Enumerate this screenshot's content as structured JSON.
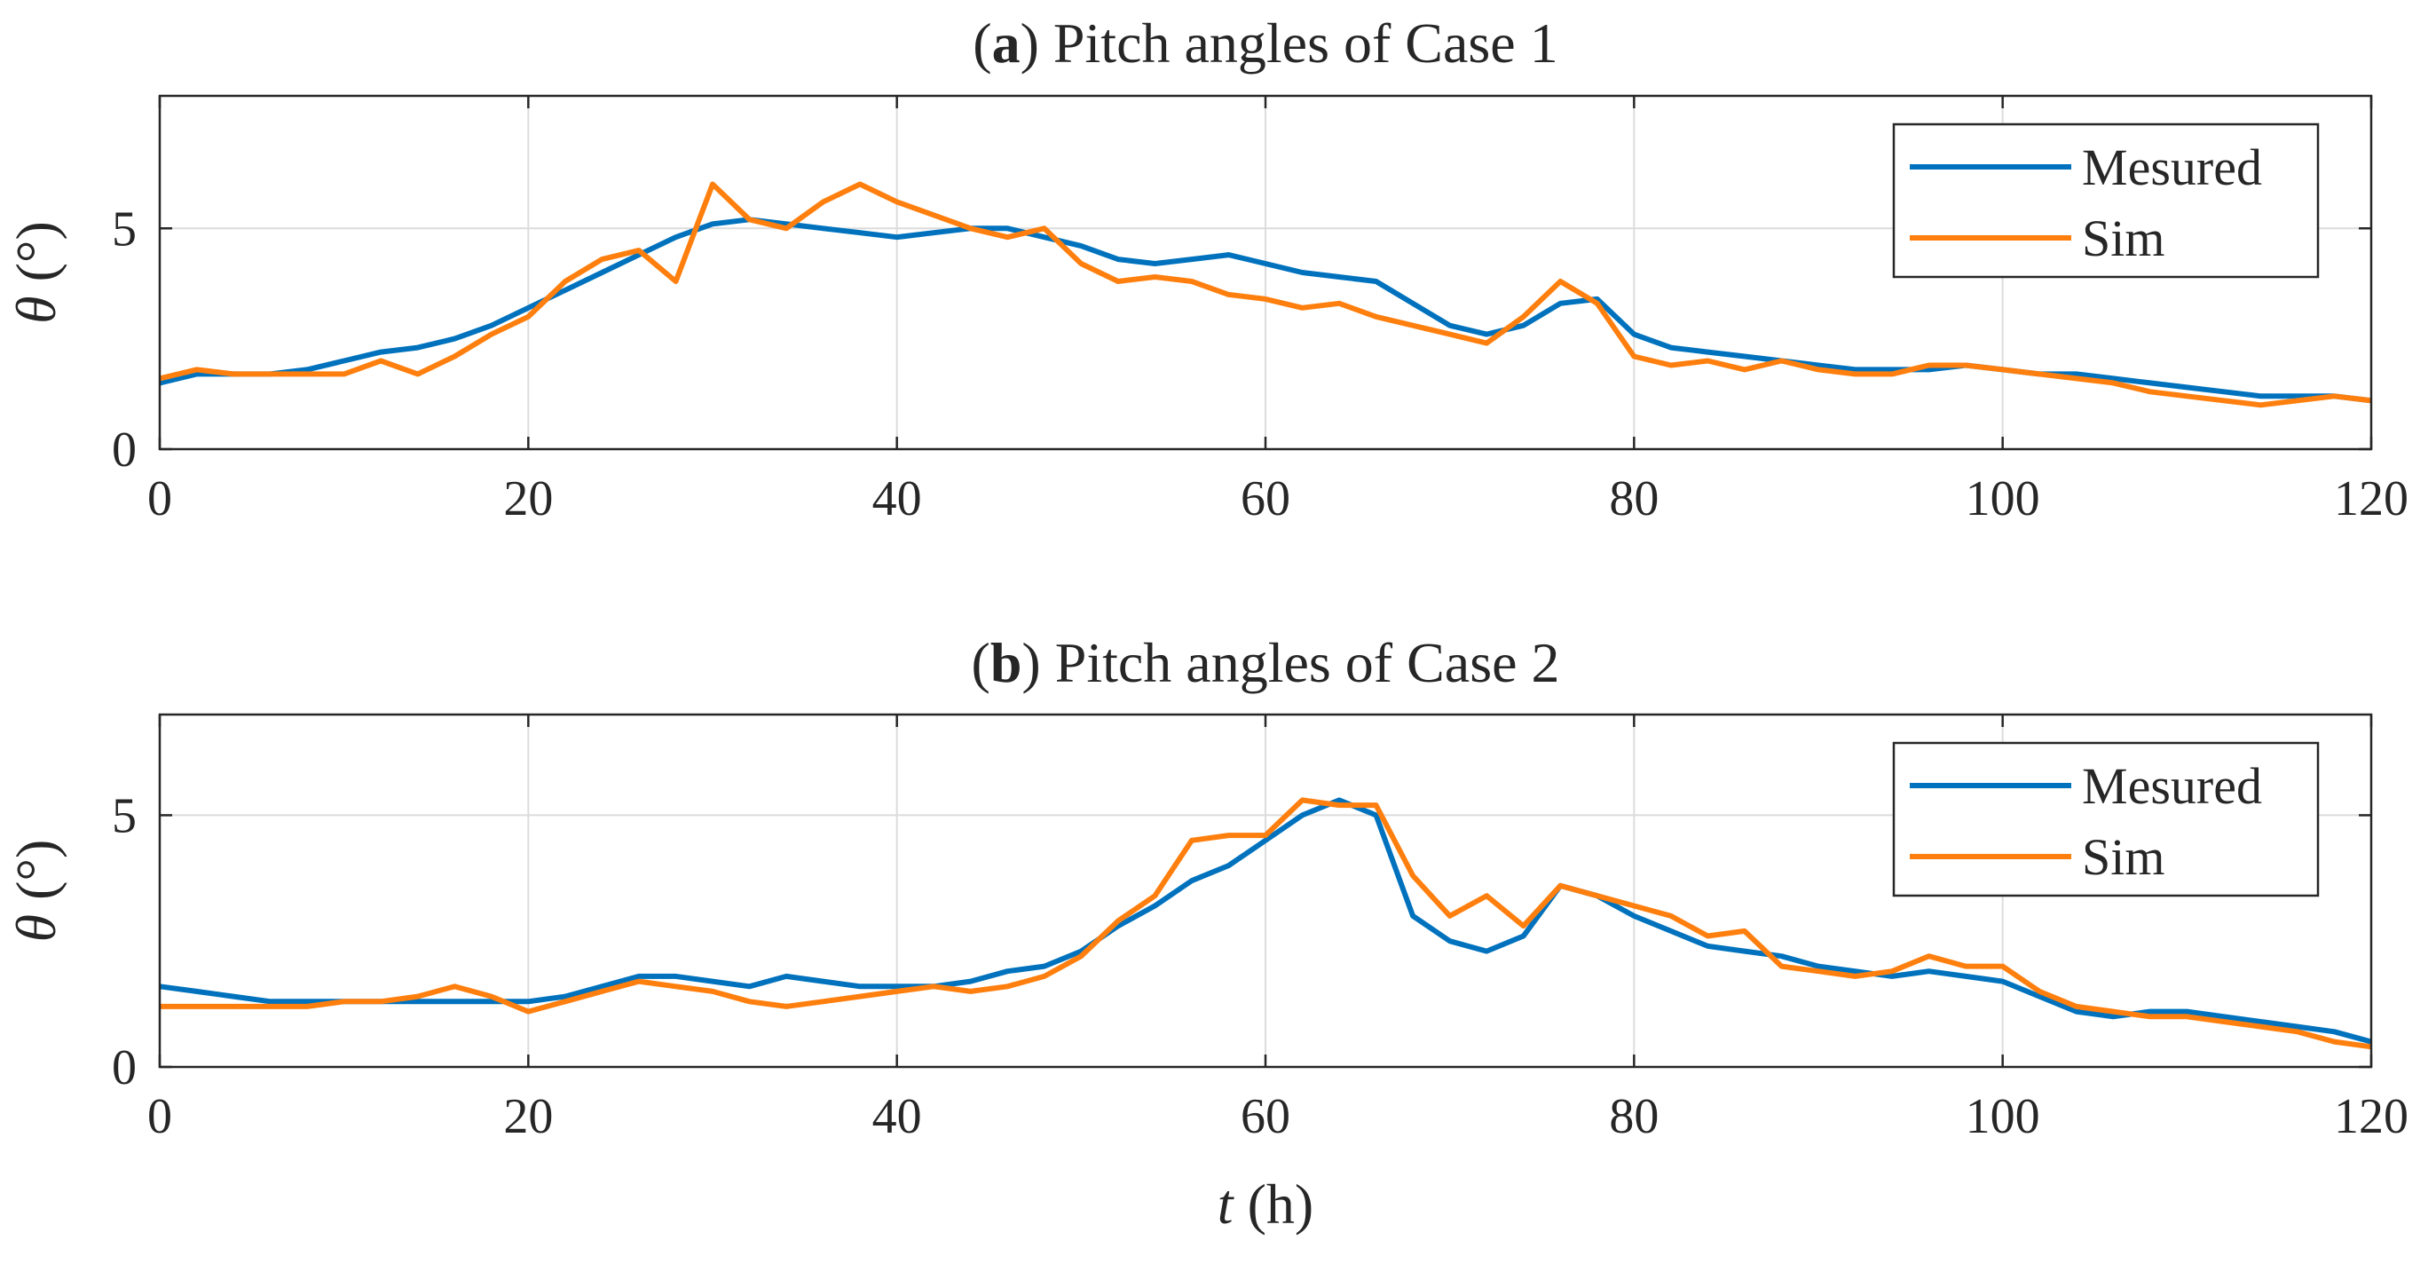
{
  "chart_data": [
    {
      "type": "line",
      "title_letter": "a",
      "title_rest": "Pitch angles of Case 1",
      "xlabel": "",
      "ylabel_symbol": "θ",
      "ylabel_unit": "(°)",
      "xlim": [
        0,
        120
      ],
      "ylim": [
        0,
        8
      ],
      "xticks": [
        0,
        20,
        40,
        60,
        80,
        100,
        120
      ],
      "yticks": [
        0,
        5
      ],
      "grid": true,
      "legend_position": "top-right",
      "series": [
        {
          "name": "Mesured",
          "color": "#0072BD",
          "x": [
            0,
            2,
            4,
            6,
            8,
            10,
            12,
            14,
            16,
            18,
            20,
            22,
            24,
            26,
            28,
            30,
            32,
            34,
            36,
            38,
            40,
            42,
            44,
            46,
            48,
            50,
            52,
            54,
            56,
            58,
            60,
            62,
            64,
            66,
            68,
            70,
            72,
            74,
            76,
            78,
            80,
            82,
            84,
            86,
            88,
            90,
            92,
            94,
            96,
            98,
            100,
            102,
            104,
            106,
            108,
            110,
            112,
            114,
            116,
            118,
            120
          ],
          "y": [
            1.5,
            1.7,
            1.7,
            1.7,
            1.8,
            2.0,
            2.2,
            2.3,
            2.5,
            2.8,
            3.2,
            3.6,
            4.0,
            4.4,
            4.8,
            5.1,
            5.2,
            5.1,
            5.0,
            4.9,
            4.8,
            4.9,
            5.0,
            5.0,
            4.8,
            4.6,
            4.3,
            4.2,
            4.3,
            4.4,
            4.2,
            4.0,
            3.9,
            3.8,
            3.3,
            2.8,
            2.6,
            2.8,
            3.3,
            3.4,
            2.6,
            2.3,
            2.2,
            2.1,
            2.0,
            1.9,
            1.8,
            1.8,
            1.8,
            1.9,
            1.8,
            1.7,
            1.7,
            1.6,
            1.5,
            1.4,
            1.3,
            1.2,
            1.2,
            1.2,
            1.1
          ]
        },
        {
          "name": "Sim",
          "color": "#FF7F0E",
          "x": [
            0,
            2,
            4,
            6,
            8,
            10,
            12,
            14,
            16,
            18,
            20,
            22,
            24,
            26,
            28,
            30,
            32,
            34,
            36,
            38,
            40,
            42,
            44,
            46,
            48,
            50,
            52,
            54,
            56,
            58,
            60,
            62,
            64,
            66,
            68,
            70,
            72,
            74,
            76,
            78,
            80,
            82,
            84,
            86,
            88,
            90,
            92,
            94,
            96,
            98,
            100,
            102,
            104,
            106,
            108,
            110,
            112,
            114,
            116,
            118,
            120
          ],
          "y": [
            1.6,
            1.8,
            1.7,
            1.7,
            1.7,
            1.7,
            2.0,
            1.7,
            2.1,
            2.6,
            3.0,
            3.8,
            4.3,
            4.5,
            3.8,
            6.0,
            5.2,
            5.0,
            5.6,
            6.0,
            5.6,
            5.3,
            5.0,
            4.8,
            5.0,
            4.2,
            3.8,
            3.9,
            3.8,
            3.5,
            3.4,
            3.2,
            3.3,
            3.0,
            2.8,
            2.6,
            2.4,
            3.0,
            3.8,
            3.3,
            2.1,
            1.9,
            2.0,
            1.8,
            2.0,
            1.8,
            1.7,
            1.7,
            1.9,
            1.9,
            1.8,
            1.7,
            1.6,
            1.5,
            1.3,
            1.2,
            1.1,
            1.0,
            1.1,
            1.2,
            1.1
          ]
        }
      ]
    },
    {
      "type": "line",
      "title_letter": "b",
      "title_rest": "Pitch angles of Case 2",
      "xlabel_symbol": "t",
      "xlabel_unit": "(h)",
      "ylabel_symbol": "θ",
      "ylabel_unit": "(°)",
      "xlim": [
        0,
        120
      ],
      "ylim": [
        0,
        7
      ],
      "xticks": [
        0,
        20,
        40,
        60,
        80,
        100,
        120
      ],
      "yticks": [
        0,
        5
      ],
      "grid": true,
      "legend_position": "top-right",
      "series": [
        {
          "name": "Mesured",
          "color": "#0072BD",
          "x": [
            0,
            2,
            4,
            6,
            8,
            10,
            12,
            14,
            16,
            18,
            20,
            22,
            24,
            26,
            28,
            30,
            32,
            34,
            36,
            38,
            40,
            42,
            44,
            46,
            48,
            50,
            52,
            54,
            56,
            58,
            60,
            62,
            64,
            66,
            68,
            70,
            72,
            74,
            76,
            78,
            80,
            82,
            84,
            86,
            88,
            90,
            92,
            94,
            96,
            98,
            100,
            102,
            104,
            106,
            108,
            110,
            112,
            114,
            116,
            118,
            120
          ],
          "y": [
            1.6,
            1.5,
            1.4,
            1.3,
            1.3,
            1.3,
            1.3,
            1.3,
            1.3,
            1.3,
            1.3,
            1.4,
            1.6,
            1.8,
            1.8,
            1.7,
            1.6,
            1.8,
            1.7,
            1.6,
            1.6,
            1.6,
            1.7,
            1.9,
            2.0,
            2.3,
            2.8,
            3.2,
            3.7,
            4.0,
            4.5,
            5.0,
            5.3,
            5.0,
            3.0,
            2.5,
            2.3,
            2.6,
            3.6,
            3.4,
            3.0,
            2.7,
            2.4,
            2.3,
            2.2,
            2.0,
            1.9,
            1.8,
            1.9,
            1.8,
            1.7,
            1.4,
            1.1,
            1.0,
            1.1,
            1.1,
            1.0,
            0.9,
            0.8,
            0.7,
            0.5
          ]
        },
        {
          "name": "Sim",
          "color": "#FF7F0E",
          "x": [
            0,
            2,
            4,
            6,
            8,
            10,
            12,
            14,
            16,
            18,
            20,
            22,
            24,
            26,
            28,
            30,
            32,
            34,
            36,
            38,
            40,
            42,
            44,
            46,
            48,
            50,
            52,
            54,
            56,
            58,
            60,
            62,
            64,
            66,
            68,
            70,
            72,
            74,
            76,
            78,
            80,
            82,
            84,
            86,
            88,
            90,
            92,
            94,
            96,
            98,
            100,
            102,
            104,
            106,
            108,
            110,
            112,
            114,
            116,
            118,
            120
          ],
          "y": [
            1.2,
            1.2,
            1.2,
            1.2,
            1.2,
            1.3,
            1.3,
            1.4,
            1.6,
            1.4,
            1.1,
            1.3,
            1.5,
            1.7,
            1.6,
            1.5,
            1.3,
            1.2,
            1.3,
            1.4,
            1.5,
            1.6,
            1.5,
            1.6,
            1.8,
            2.2,
            2.9,
            3.4,
            4.5,
            4.6,
            4.6,
            5.3,
            5.2,
            5.2,
            3.8,
            3.0,
            3.4,
            2.8,
            3.6,
            3.4,
            3.2,
            3.0,
            2.6,
            2.7,
            2.0,
            1.9,
            1.8,
            1.9,
            2.2,
            2.0,
            2.0,
            1.5,
            1.2,
            1.1,
            1.0,
            1.0,
            0.9,
            0.8,
            0.7,
            0.5,
            0.4
          ]
        }
      ]
    }
  ]
}
